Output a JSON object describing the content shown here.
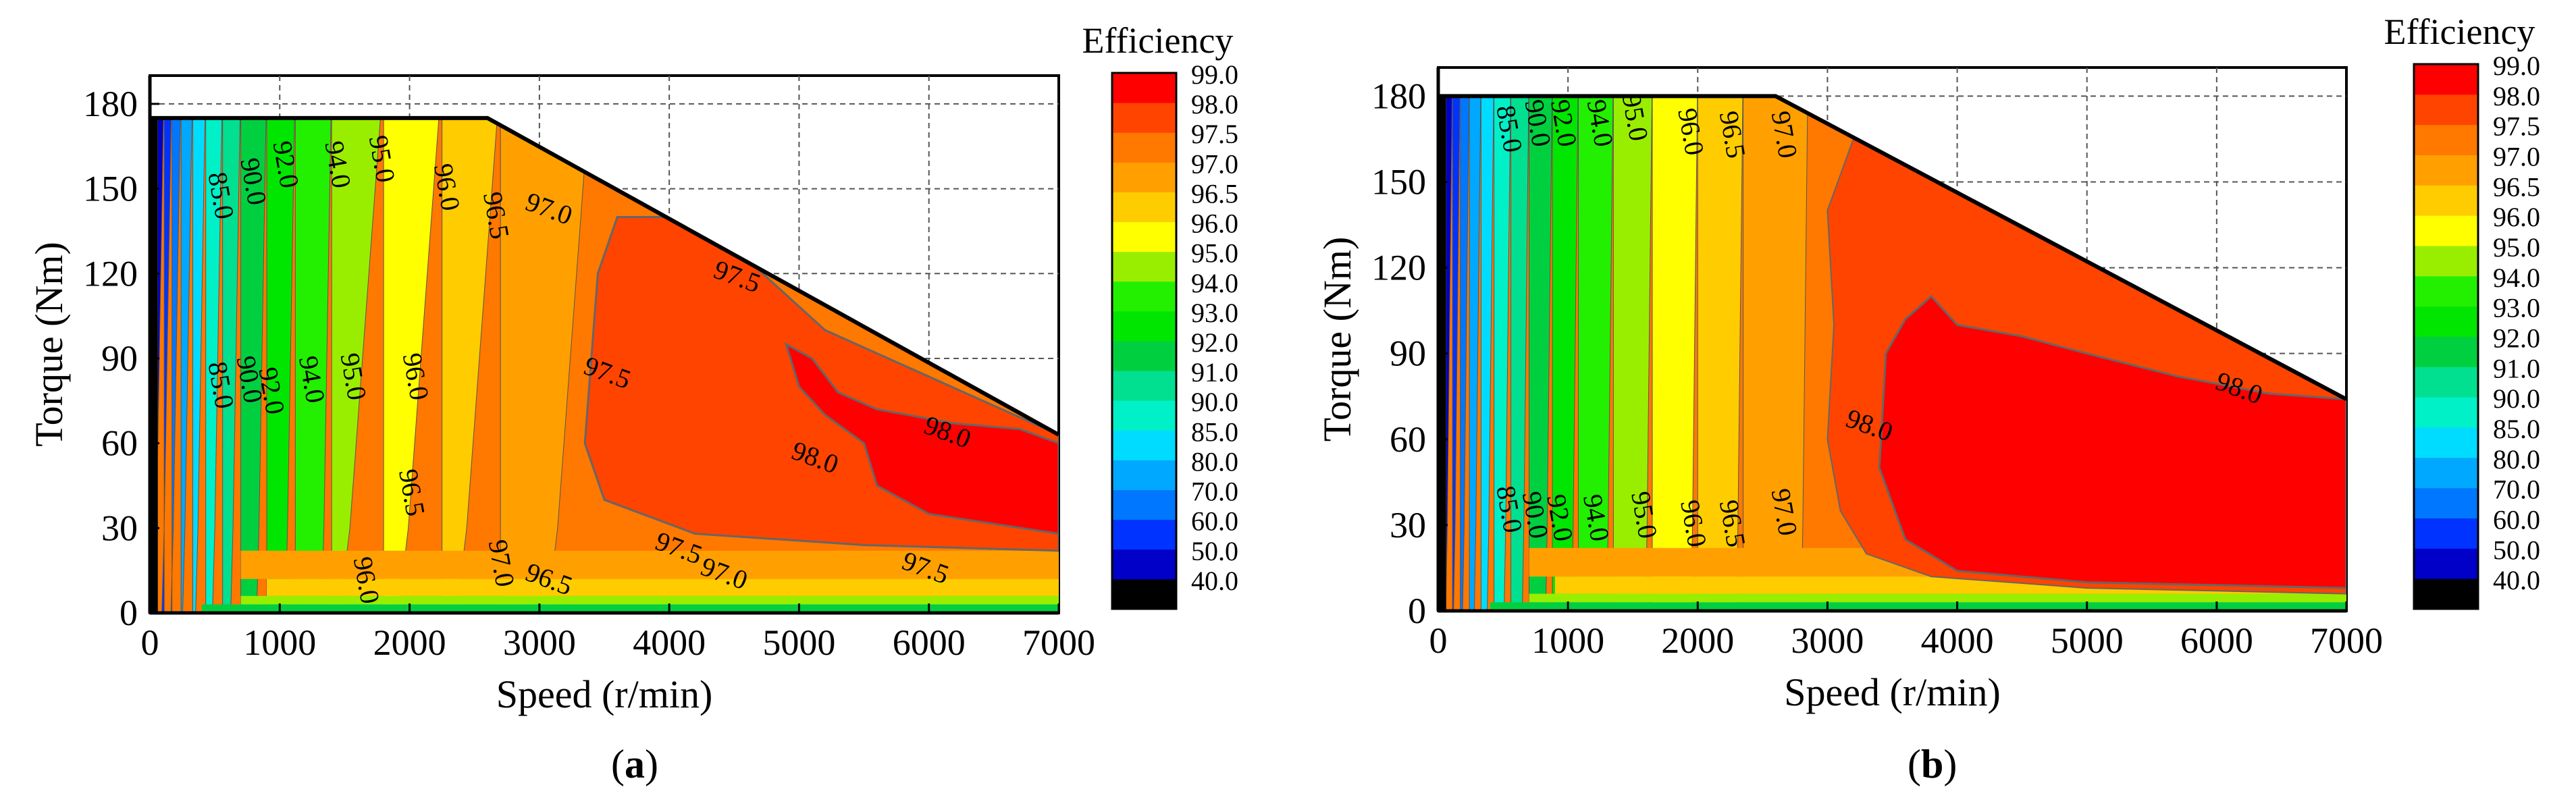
{
  "chart_data": [
    {
      "type": "contour",
      "panel_label": "a",
      "xlabel": "Speed (r/min)",
      "ylabel": "Torque (Nm)",
      "xlim": [
        0,
        7000
      ],
      "ylim": [
        0,
        190
      ],
      "xticks": [
        "0",
        "1000",
        "2000",
        "3000",
        "4000",
        "5000",
        "6000",
        "7000"
      ],
      "yticks": [
        "0",
        "30",
        "60",
        "90",
        "120",
        "150",
        "180"
      ],
      "grid": true,
      "torque_limit": [
        [
          0,
          175
        ],
        [
          2600,
          175
        ],
        [
          7000,
          63
        ]
      ],
      "colorbar": {
        "title": "Efficiency",
        "levels": [
          "40.0",
          "50.0",
          "60.0",
          "70.0",
          "80.0",
          "85.0",
          "90.0",
          "91.0",
          "92.0",
          "93.0",
          "94.0",
          "95.0",
          "96.0",
          "96.5",
          "97.0",
          "97.5",
          "98.0",
          "99.0"
        ],
        "colors": [
          "#000000",
          "#0000c8",
          "#0033ff",
          "#0077ff",
          "#00a8ff",
          "#00dcff",
          "#00f0c8",
          "#00e090",
          "#00d040",
          "#00e600",
          "#22f000",
          "#99ee00",
          "#ffff00",
          "#ffcc00",
          "#ffa000",
          "#ff7800",
          "#ff4400",
          "#ff0000"
        ]
      },
      "contour_labels": [
        {
          "text": "85.0",
          "speed": 480,
          "torque": 147
        },
        {
          "text": "90.0",
          "speed": 730,
          "torque": 152
        },
        {
          "text": "92.0",
          "speed": 980,
          "torque": 158
        },
        {
          "text": "94.0",
          "speed": 1380,
          "torque": 158
        },
        {
          "text": "95.0",
          "speed": 1720,
          "torque": 160
        },
        {
          "text": "96.0",
          "speed": 2220,
          "torque": 150
        },
        {
          "text": "96.5",
          "speed": 2600,
          "torque": 140
        },
        {
          "text": "97.0",
          "speed": 3050,
          "torque": 140
        },
        {
          "text": "97.5",
          "speed": 4500,
          "torque": 116
        },
        {
          "text": "97.5",
          "speed": 3500,
          "torque": 82
        },
        {
          "text": "98.0",
          "speed": 6120,
          "torque": 61
        },
        {
          "text": "98.0",
          "speed": 5100,
          "torque": 52
        },
        {
          "text": "85.0",
          "speed": 480,
          "torque": 80
        },
        {
          "text": "90.0",
          "speed": 700,
          "torque": 82
        },
        {
          "text": "92.0",
          "speed": 870,
          "torque": 78
        },
        {
          "text": "94.0",
          "speed": 1180,
          "torque": 82
        },
        {
          "text": "95.0",
          "speed": 1500,
          "torque": 83
        },
        {
          "text": "96.0",
          "speed": 1980,
          "torque": 83
        },
        {
          "text": "96.5",
          "speed": 1950,
          "torque": 42
        },
        {
          "text": "96.0",
          "speed": 1600,
          "torque": 11
        },
        {
          "text": "97.0",
          "speed": 2640,
          "torque": 17
        },
        {
          "text": "96.5",
          "speed": 3050,
          "torque": 9
        },
        {
          "text": "97.5",
          "speed": 4050,
          "torque": 20
        },
        {
          "text": "97.0",
          "speed": 4400,
          "torque": 11
        },
        {
          "text": "97.5",
          "speed": 5950,
          "torque": 13
        }
      ]
    },
    {
      "type": "contour",
      "panel_label": "b",
      "xlabel": "Speed (r/min)",
      "ylabel": "Torque (Nm)",
      "xlim": [
        0,
        7000
      ],
      "ylim": [
        0,
        190
      ],
      "xticks": [
        "0",
        "1000",
        "2000",
        "3000",
        "4000",
        "5000",
        "6000",
        "7000"
      ],
      "yticks": [
        "0",
        "30",
        "60",
        "90",
        "120",
        "150",
        "180"
      ],
      "grid": true,
      "torque_limit": [
        [
          0,
          180
        ],
        [
          2600,
          180
        ],
        [
          7000,
          74
        ]
      ],
      "colorbar": {
        "title": "Efficiency",
        "levels": [
          "40.0",
          "50.0",
          "60.0",
          "70.0",
          "80.0",
          "85.0",
          "90.0",
          "91.0",
          "92.0",
          "93.0",
          "94.0",
          "95.0",
          "96.0",
          "96.5",
          "97.0",
          "97.5",
          "98.0",
          "99.0"
        ],
        "colors": [
          "#000000",
          "#0000c8",
          "#0033ff",
          "#0077ff",
          "#00a8ff",
          "#00dcff",
          "#00f0c8",
          "#00e090",
          "#00d040",
          "#00e600",
          "#22f000",
          "#99ee00",
          "#ffff00",
          "#ffcc00",
          "#ffa000",
          "#ff7800",
          "#ff4400",
          "#ff0000"
        ]
      },
      "contour_labels": [
        {
          "text": "85.0",
          "speed": 480,
          "torque": 168
        },
        {
          "text": "90.0",
          "speed": 700,
          "torque": 170
        },
        {
          "text": "92.0",
          "speed": 900,
          "torque": 170
        },
        {
          "text": "94.0",
          "speed": 1180,
          "torque": 170
        },
        {
          "text": "95.0",
          "speed": 1450,
          "torque": 172
        },
        {
          "text": "96.0",
          "speed": 1880,
          "torque": 167
        },
        {
          "text": "96.5",
          "speed": 2200,
          "torque": 166
        },
        {
          "text": "97.0",
          "speed": 2600,
          "torque": 166
        },
        {
          "text": "98.0",
          "speed": 3300,
          "torque": 62
        },
        {
          "text": "98.0",
          "speed": 6150,
          "torque": 75
        },
        {
          "text": "85.0",
          "speed": 480,
          "torque": 35
        },
        {
          "text": "90.0",
          "speed": 680,
          "torque": 33
        },
        {
          "text": "92.0",
          "speed": 870,
          "torque": 32
        },
        {
          "text": "94.0",
          "speed": 1150,
          "torque": 32
        },
        {
          "text": "95.0",
          "speed": 1520,
          "torque": 33
        },
        {
          "text": "96.0",
          "speed": 1900,
          "torque": 30
        },
        {
          "text": "96.5",
          "speed": 2200,
          "torque": 30
        },
        {
          "text": "97.0",
          "speed": 2600,
          "torque": 34
        }
      ]
    }
  ]
}
